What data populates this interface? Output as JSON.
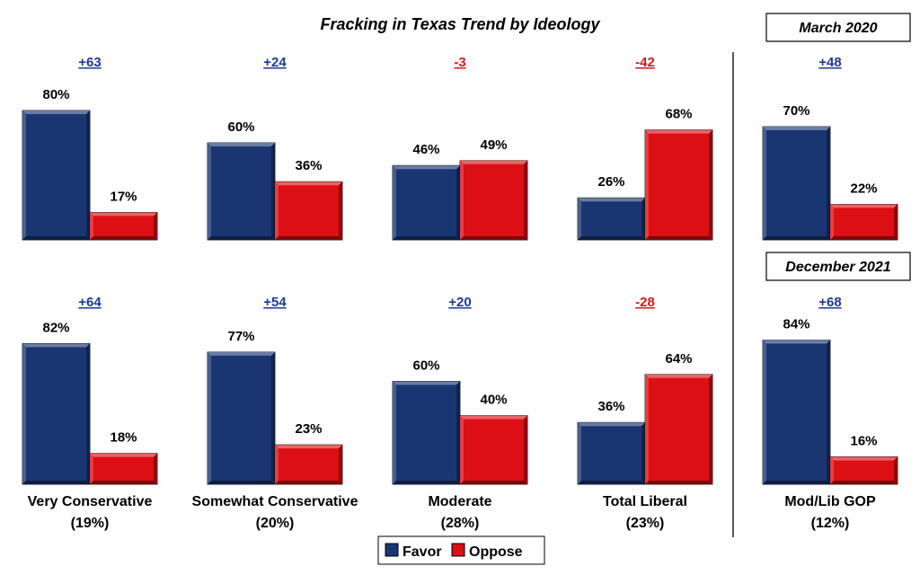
{
  "chart_data": {
    "type": "bar",
    "title": "Fracking in Texas Trend by Ideology",
    "legend": {
      "placement": "bottom-center",
      "entries": [
        {
          "name": "Favor",
          "color": "#1a3672"
        },
        {
          "name": "Oppose",
          "color": "#dc0f14"
        }
      ]
    },
    "series_colors": {
      "favor": "#1a3672",
      "oppose": "#dc0f14",
      "positive_net": "#1f3a8a",
      "negative_net": "#d01c1c"
    },
    "period_labels": [
      "March 2020",
      "December 2021"
    ],
    "panels": [
      {
        "category": "Very Conservative",
        "share": "(19%)",
        "march_2020": {
          "favor": 80,
          "oppose": 17,
          "net": "+63"
        },
        "december_2021": {
          "favor": 82,
          "oppose": 18,
          "net": "+64"
        }
      },
      {
        "category": "Somewhat Conservative",
        "share": "(20%)",
        "march_2020": {
          "favor": 60,
          "oppose": 36,
          "net": "+24"
        },
        "december_2021": {
          "favor": 77,
          "oppose": 23,
          "net": "+54"
        }
      },
      {
        "category": "Moderate",
        "share": "(28%)",
        "march_2020": {
          "favor": 46,
          "oppose": 49,
          "net": "-3"
        },
        "december_2021": {
          "favor": 60,
          "oppose": 40,
          "net": "+20"
        }
      },
      {
        "category": "Total Liberal",
        "share": "(23%)",
        "march_2020": {
          "favor": 26,
          "oppose": 68,
          "net": "-42"
        },
        "december_2021": {
          "favor": 36,
          "oppose": 64,
          "net": "-28"
        }
      },
      {
        "category": "Mod/Lib GOP",
        "share": "(12%)",
        "march_2020": {
          "favor": 70,
          "oppose": 22,
          "net": "+48"
        },
        "december_2021": {
          "favor": 84,
          "oppose": 16,
          "net": "+68"
        }
      }
    ],
    "ylim": [
      0,
      100
    ],
    "grid": false
  }
}
